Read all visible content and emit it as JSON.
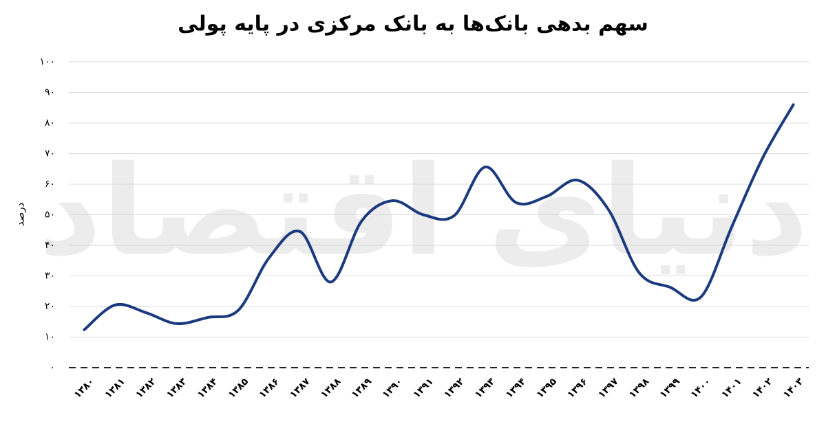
{
  "chart_data": {
    "type": "line",
    "title": "سهم بدهی بانک‌ها به بانک مرکزی در پایه پولی",
    "watermark": "دنیای اقتصاد",
    "y_label": "درصد",
    "categories": [
      "۱۳۸۰",
      "۱۳۸۱",
      "۱۳۸۲",
      "۱۳۸۳",
      "۱۳۸۴",
      "۱۳۸۵",
      "۱۳۸۶",
      "۱۳۸۷",
      "۱۳۸۸",
      "۱۳۸۹",
      "۱۳۹۰",
      "۱۳۹۱",
      "۱۳۹۲",
      "۱۳۹۳",
      "۱۳۹۴",
      "۱۳۹۵",
      "۱۳۹۶",
      "۱۳۹۷",
      "۱۳۹۸",
      "۱۳۹۹",
      "۱۴۰۰",
      "۱۴۰۱",
      "۱۴۰۲",
      "۱۴۰۳"
    ],
    "series": [
      {
        "color": "#1b3a7e",
        "values": [
          12.4,
          20.5,
          18,
          14.4,
          16.4,
          18.8,
          36,
          44.5,
          28,
          48,
          54.6,
          50,
          49.7,
          65.6,
          54,
          56,
          61.3,
          51.7,
          31,
          26.3,
          23.1,
          46,
          68.5,
          86
        ]
      }
    ],
    "ylim": [
      0,
      100
    ],
    "yticks": [
      {
        "value": 0,
        "label": "۰"
      },
      {
        "value": 10,
        "label": "۱۰"
      },
      {
        "value": 20,
        "label": "۲۰"
      },
      {
        "value": 30,
        "label": "۳۰"
      },
      {
        "value": 40,
        "label": "۴۰"
      },
      {
        "value": 50,
        "label": "۵۰"
      },
      {
        "value": 60,
        "label": "۶۰"
      },
      {
        "value": 70,
        "label": "۷۰"
      },
      {
        "value": 80,
        "label": "۸۰"
      },
      {
        "value": 90,
        "label": "۹۰"
      },
      {
        "value": 100,
        "label": "۱۰۰"
      }
    ],
    "grid": true
  }
}
